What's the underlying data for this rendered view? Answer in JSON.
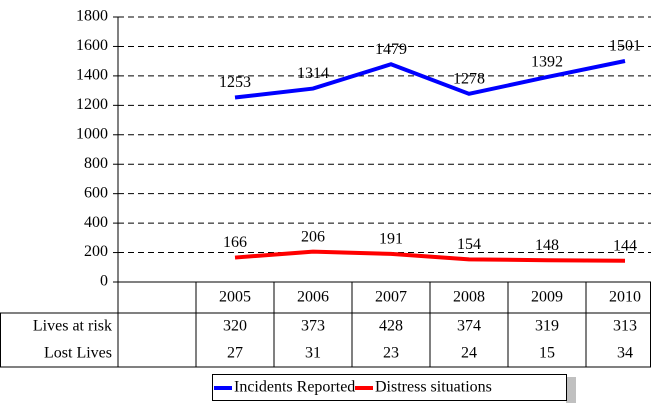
{
  "chart_data": {
    "type": "line",
    "categories": [
      "2005",
      "2006",
      "2007",
      "2008",
      "2009",
      "2010"
    ],
    "series": [
      {
        "name": "Incidents Reported",
        "color": "#0000ff",
        "values": [
          1253,
          1314,
          1479,
          1278,
          1392,
          1501
        ]
      },
      {
        "name": "Distress situations",
        "color": "#ff0000",
        "values": [
          166,
          206,
          191,
          154,
          148,
          144
        ]
      }
    ],
    "ylim": [
      0,
      1800
    ],
    "yticks": [
      0,
      200,
      400,
      600,
      800,
      1000,
      1200,
      1400,
      1600,
      1800
    ],
    "grid": true,
    "table": [
      {
        "name": "Lives at risk",
        "values": [
          320,
          373,
          428,
          374,
          319,
          313
        ]
      },
      {
        "name": "Lost Lives",
        "values": [
          27,
          31,
          23,
          24,
          15,
          34
        ]
      }
    ],
    "legend": "bottom"
  }
}
